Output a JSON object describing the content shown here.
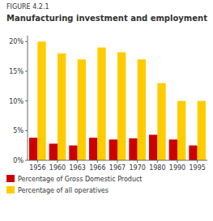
{
  "chart_data": {
    "type": "bar",
    "subtitle": "FIGURE 4.2.1",
    "title": "Manufacturing investment and employment",
    "categories": [
      "1956",
      "1960",
      "1963",
      "1966",
      "1967",
      "1970",
      "1980",
      "1990",
      "1995"
    ],
    "series": [
      {
        "name": "Percentage of Gross Domestic Product",
        "color": "#cc0000",
        "values": [
          3.8,
          2.8,
          2.5,
          3.8,
          3.5,
          3.7,
          4.3,
          3.5,
          2.5
        ]
      },
      {
        "name": "Percentage of all operatives",
        "color": "#ffcc00",
        "values": [
          20.0,
          18.0,
          17.0,
          19.0,
          18.2,
          17.0,
          13.0,
          10.0,
          10.0
        ]
      }
    ],
    "ylim": [
      0,
      21
    ],
    "yticks": [
      {
        "value": 0,
        "label": "0%"
      },
      {
        "value": 5,
        "label": "5%"
      },
      {
        "value": 10,
        "label": "10%"
      },
      {
        "value": 15,
        "label": "15%"
      },
      {
        "value": 20,
        "label": "20%"
      }
    ],
    "grid": false,
    "legend": "bottom"
  }
}
